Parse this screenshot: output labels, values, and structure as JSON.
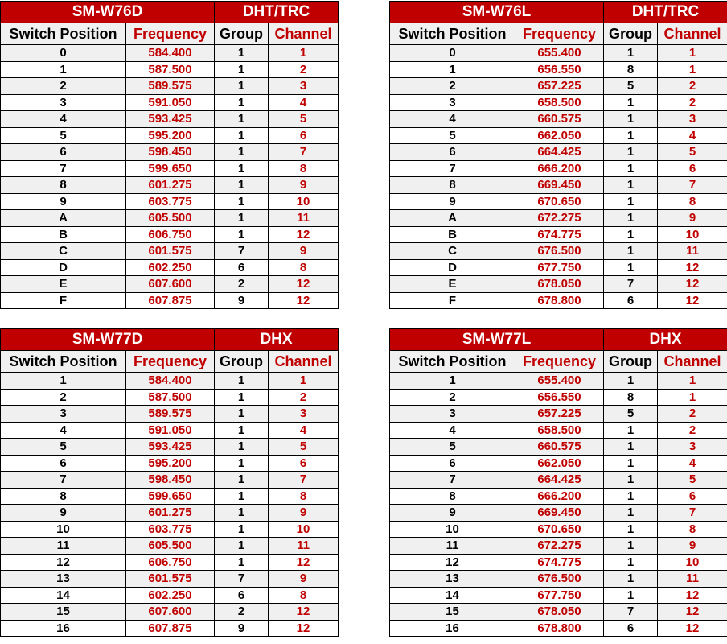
{
  "colors": {
    "header_bg": "#c00000",
    "accent_text": "#c00000",
    "alt_row": "#f0f0f0"
  },
  "columns": [
    "Switch Position",
    "Frequency",
    "Group",
    "Channel"
  ],
  "tables": [
    {
      "model": "SM-W76D",
      "system": "DHT/TRC",
      "rows": [
        [
          "0",
          "584.400",
          "1",
          "1"
        ],
        [
          "1",
          "587.500",
          "1",
          "2"
        ],
        [
          "2",
          "589.575",
          "1",
          "3"
        ],
        [
          "3",
          "591.050",
          "1",
          "4"
        ],
        [
          "4",
          "593.425",
          "1",
          "5"
        ],
        [
          "5",
          "595.200",
          "1",
          "6"
        ],
        [
          "6",
          "598.450",
          "1",
          "7"
        ],
        [
          "7",
          "599.650",
          "1",
          "8"
        ],
        [
          "8",
          "601.275",
          "1",
          "9"
        ],
        [
          "9",
          "603.775",
          "1",
          "10"
        ],
        [
          "A",
          "605.500",
          "1",
          "11"
        ],
        [
          "B",
          "606.750",
          "1",
          "12"
        ],
        [
          "C",
          "601.575",
          "7",
          "9"
        ],
        [
          "D",
          "602.250",
          "6",
          "8"
        ],
        [
          "E",
          "607.600",
          "2",
          "12"
        ],
        [
          "F",
          "607.875",
          "9",
          "12"
        ]
      ]
    },
    {
      "model": "SM-W76L",
      "system": "DHT/TRC",
      "rows": [
        [
          "0",
          "655.400",
          "1",
          "1"
        ],
        [
          "1",
          "656.550",
          "8",
          "1"
        ],
        [
          "2",
          "657.225",
          "5",
          "2"
        ],
        [
          "3",
          "658.500",
          "1",
          "2"
        ],
        [
          "4",
          "660.575",
          "1",
          "3"
        ],
        [
          "5",
          "662.050",
          "1",
          "4"
        ],
        [
          "6",
          "664.425",
          "1",
          "5"
        ],
        [
          "7",
          "666.200",
          "1",
          "6"
        ],
        [
          "8",
          "669.450",
          "1",
          "7"
        ],
        [
          "9",
          "670.650",
          "1",
          "8"
        ],
        [
          "A",
          "672.275",
          "1",
          "9"
        ],
        [
          "B",
          "674.775",
          "1",
          "10"
        ],
        [
          "C",
          "676.500",
          "1",
          "11"
        ],
        [
          "D",
          "677.750",
          "1",
          "12"
        ],
        [
          "E",
          "678.050",
          "7",
          "12"
        ],
        [
          "F",
          "678.800",
          "6",
          "12"
        ]
      ]
    },
    {
      "model": "SM-W77D",
      "system": "DHX",
      "rows": [
        [
          "1",
          "584.400",
          "1",
          "1"
        ],
        [
          "2",
          "587.500",
          "1",
          "2"
        ],
        [
          "3",
          "589.575",
          "1",
          "3"
        ],
        [
          "4",
          "591.050",
          "1",
          "4"
        ],
        [
          "5",
          "593.425",
          "1",
          "5"
        ],
        [
          "6",
          "595.200",
          "1",
          "6"
        ],
        [
          "7",
          "598.450",
          "1",
          "7"
        ],
        [
          "8",
          "599.650",
          "1",
          "8"
        ],
        [
          "9",
          "601.275",
          "1",
          "9"
        ],
        [
          "10",
          "603.775",
          "1",
          "10"
        ],
        [
          "11",
          "605.500",
          "1",
          "11"
        ],
        [
          "12",
          "606.750",
          "1",
          "12"
        ],
        [
          "13",
          "601.575",
          "7",
          "9"
        ],
        [
          "14",
          "602.250",
          "6",
          "8"
        ],
        [
          "15",
          "607.600",
          "2",
          "12"
        ],
        [
          "16",
          "607.875",
          "9",
          "12"
        ]
      ]
    },
    {
      "model": "SM-W77L",
      "system": "DHX",
      "rows": [
        [
          "1",
          "655.400",
          "1",
          "1"
        ],
        [
          "2",
          "656.550",
          "8",
          "1"
        ],
        [
          "3",
          "657.225",
          "5",
          "2"
        ],
        [
          "4",
          "658.500",
          "1",
          "2"
        ],
        [
          "5",
          "660.575",
          "1",
          "3"
        ],
        [
          "6",
          "662.050",
          "1",
          "4"
        ],
        [
          "7",
          "664.425",
          "1",
          "5"
        ],
        [
          "8",
          "666.200",
          "1",
          "6"
        ],
        [
          "9",
          "669.450",
          "1",
          "7"
        ],
        [
          "10",
          "670.650",
          "1",
          "8"
        ],
        [
          "11",
          "672.275",
          "1",
          "9"
        ],
        [
          "12",
          "674.775",
          "1",
          "10"
        ],
        [
          "13",
          "676.500",
          "1",
          "11"
        ],
        [
          "14",
          "677.750",
          "1",
          "12"
        ],
        [
          "15",
          "678.050",
          "7",
          "12"
        ],
        [
          "16",
          "678.800",
          "6",
          "12"
        ]
      ]
    }
  ]
}
